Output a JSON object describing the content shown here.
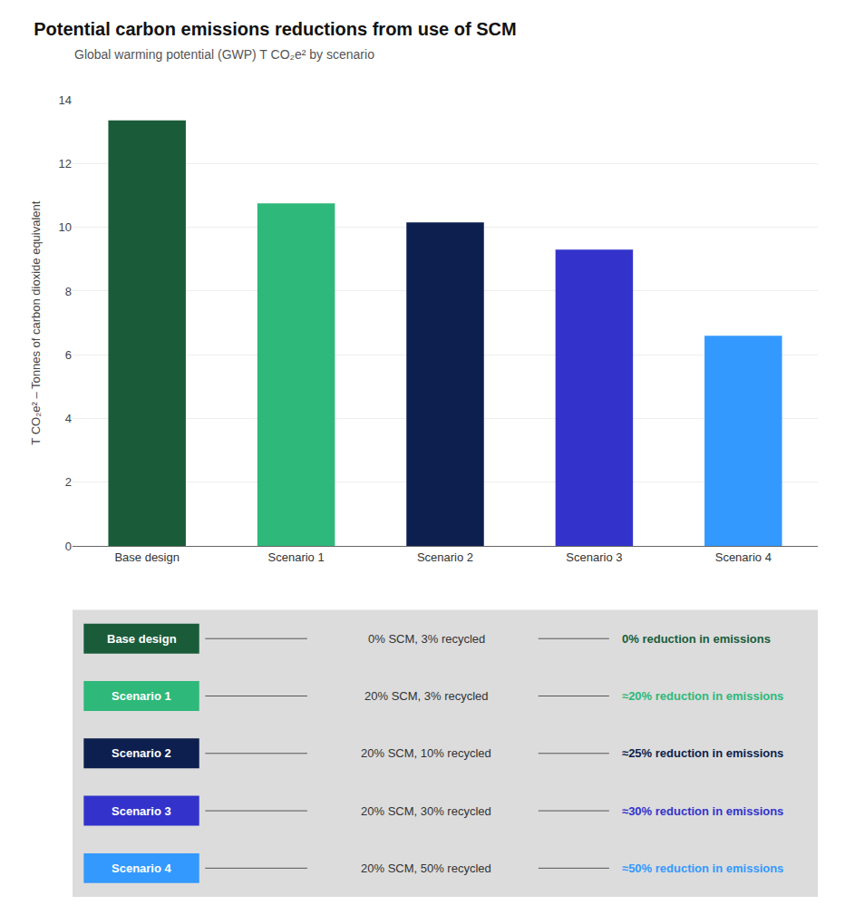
{
  "chart_data": {
    "type": "bar",
    "title": "Potential carbon emissions reductions from use of SCM",
    "subtitle": "Global warming potential (GWP) T CO₂e² by scenario",
    "ylabel": "T CO₂e² – Tonnes of carbon dioxide equivalent",
    "categories": [
      "Base design",
      "Scenario 1",
      "Scenario 2",
      "Scenario 3",
      "Scenario 4"
    ],
    "values": [
      13.35,
      10.75,
      10.15,
      9.3,
      6.6
    ],
    "colors": [
      "#1a5c3a",
      "#2eb87a",
      "#0d1f4e",
      "#3333cc",
      "#3399ff"
    ],
    "ylim": [
      0,
      14
    ],
    "yticks": [
      0,
      2,
      4,
      6,
      8,
      10,
      12,
      14
    ],
    "grid": true,
    "annotations": [
      {
        "label": "Base design",
        "description": "0% SCM, 3% recycled",
        "reduction": "0% reduction in emissions",
        "color": "#1a5c3a"
      },
      {
        "label": "Scenario 1",
        "description": "20% SCM, 3% recycled",
        "reduction": "≈20% reduction in emissions",
        "color": "#2eb87a"
      },
      {
        "label": "Scenario 2",
        "description": "20% SCM, 10% recycled",
        "reduction": "≈25% reduction in emissions",
        "color": "#0d1f4e"
      },
      {
        "label": "Scenario 3",
        "description": "20% SCM, 30% recycled",
        "reduction": "≈30% reduction in emissions",
        "color": "#3333cc"
      },
      {
        "label": "Scenario 4",
        "description": "20% SCM, 50% recycled",
        "reduction": "≈50% reduction in emissions",
        "color": "#3399ff"
      }
    ]
  }
}
